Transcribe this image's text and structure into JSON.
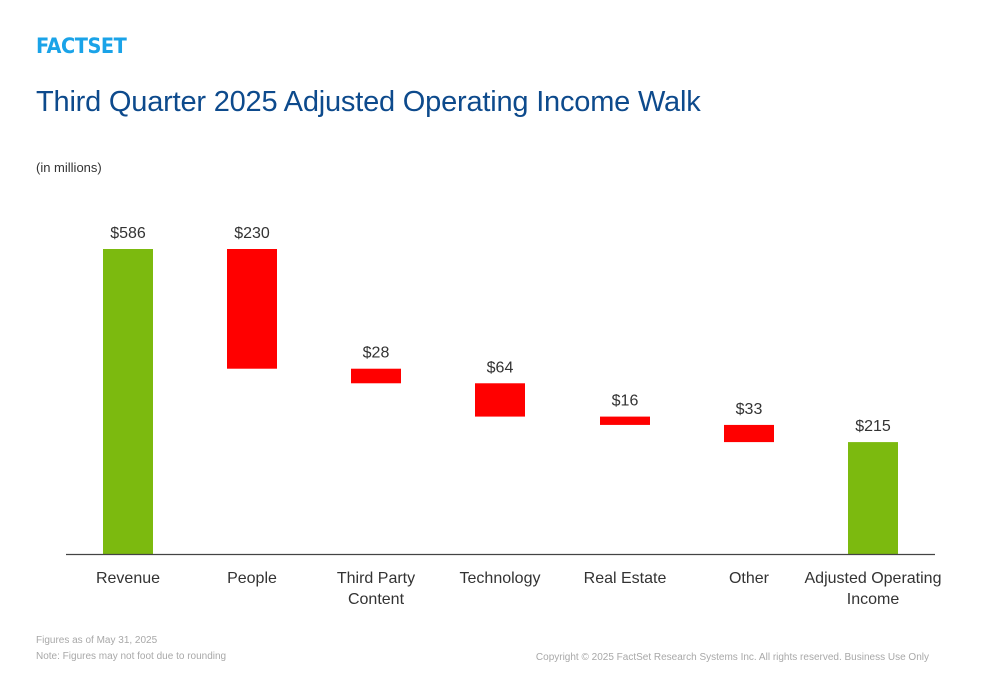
{
  "brand": {
    "logo_text": "FACTSET",
    "logo_color": "#1aa3e8"
  },
  "header": {
    "title": "Third Quarter 2025 Adjusted Operating Income Walk",
    "subtitle": "(in millions)"
  },
  "footer": {
    "note_date": "Figures as of May 31, 2025",
    "note_rounding": "Note: Figures may not foot due to rounding",
    "copyright": "Copyright © 2025 FactSet Research Systems Inc. All rights reserved. Business Use Only"
  },
  "chart_data": {
    "type": "bar",
    "subtype": "waterfall",
    "title": "Third Quarter 2025 Adjusted Operating Income Walk",
    "ylabel": "",
    "xlabel": "",
    "ylim": [
      0,
      586
    ],
    "grid": false,
    "legend": "none",
    "categories": [
      [
        "Revenue"
      ],
      [
        "People"
      ],
      [
        "Third Party",
        "Content"
      ],
      [
        "Technology"
      ],
      [
        "Real Estate"
      ],
      [
        "Other"
      ],
      [
        "Adjusted Operating",
        "Income"
      ]
    ],
    "values": [
      586,
      -230,
      -28,
      -64,
      -16,
      -33,
      215
    ],
    "kinds": [
      "total",
      "decrease",
      "decrease",
      "decrease",
      "decrease",
      "decrease",
      "total"
    ],
    "data_labels": [
      "$586",
      "$230",
      "$28",
      "$64",
      "$16",
      "$33",
      "$215"
    ],
    "colors": {
      "total": "#7cba0f",
      "decrease": "#ff0000",
      "axis": "#444444",
      "label": "#333333"
    }
  }
}
